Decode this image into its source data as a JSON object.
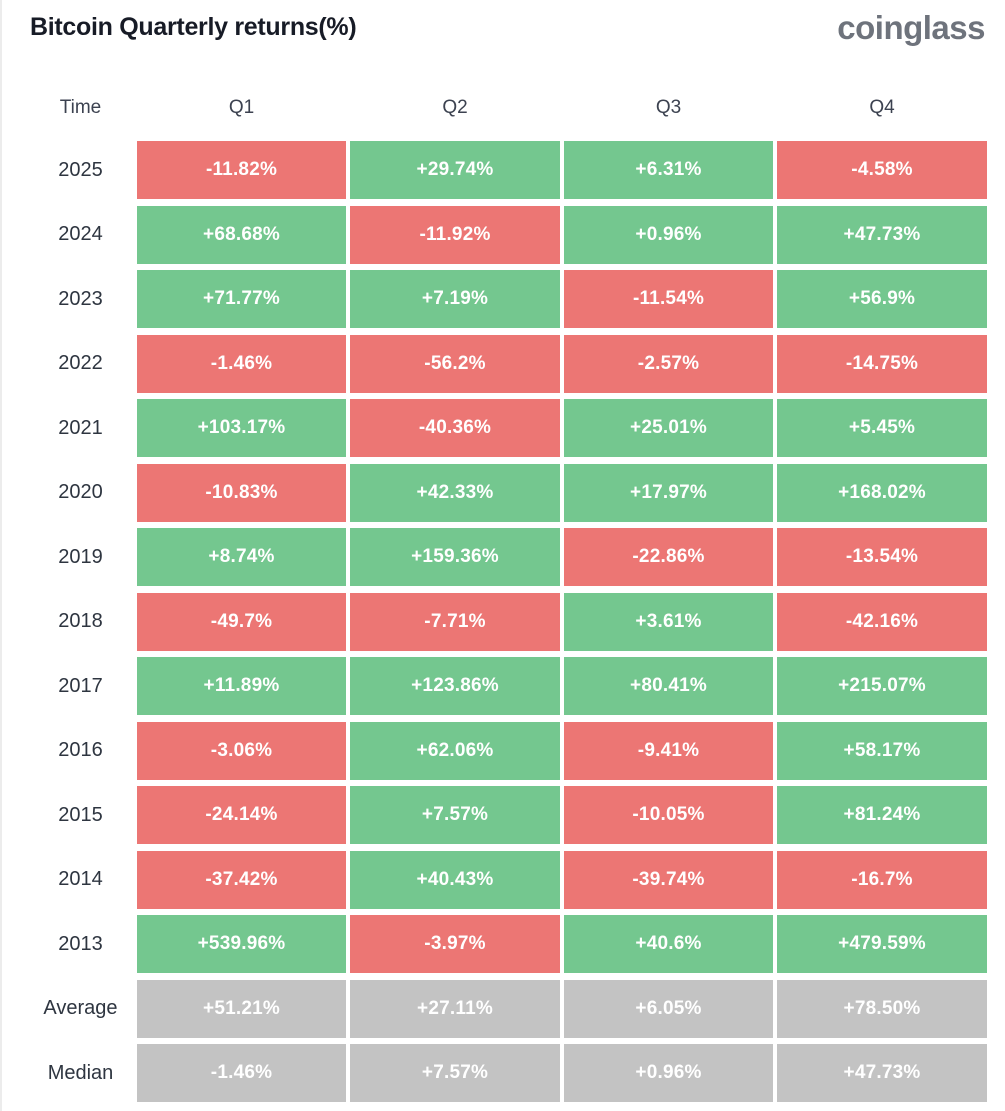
{
  "page": {
    "title": "Bitcoin Quarterly returns(%)",
    "brand": "coinglass"
  },
  "colors": {
    "positive": "#74c78f",
    "negative": "#ec7674",
    "neutral": "#c3c3c3",
    "cell_text": "#ffffff",
    "title_text": "#171b26",
    "brand_text": "#6e737c",
    "label_text": "#2e3540",
    "header_text": "#3c4250",
    "page_border": "#ececec"
  },
  "chart_data": {
    "type": "heatmap",
    "title": "Bitcoin Quarterly returns(%)",
    "legend_position": "none",
    "grid": false,
    "columns": [
      "Time",
      "Q1",
      "Q2",
      "Q3",
      "Q4"
    ],
    "unit": "%",
    "rows": [
      {
        "label": "2025",
        "summary": false,
        "values": [
          -11.82,
          29.74,
          6.31,
          -4.58
        ],
        "display": [
          "-11.82%",
          "+29.74%",
          "+6.31%",
          "-4.58%"
        ]
      },
      {
        "label": "2024",
        "summary": false,
        "values": [
          68.68,
          -11.92,
          0.96,
          47.73
        ],
        "display": [
          "+68.68%",
          "-11.92%",
          "+0.96%",
          "+47.73%"
        ]
      },
      {
        "label": "2023",
        "summary": false,
        "values": [
          71.77,
          7.19,
          -11.54,
          56.9
        ],
        "display": [
          "+71.77%",
          "+7.19%",
          "-11.54%",
          "+56.9%"
        ]
      },
      {
        "label": "2022",
        "summary": false,
        "values": [
          -1.46,
          -56.2,
          -2.57,
          -14.75
        ],
        "display": [
          "-1.46%",
          "-56.2%",
          "-2.57%",
          "-14.75%"
        ]
      },
      {
        "label": "2021",
        "summary": false,
        "values": [
          103.17,
          -40.36,
          25.01,
          5.45
        ],
        "display": [
          "+103.17%",
          "-40.36%",
          "+25.01%",
          "+5.45%"
        ]
      },
      {
        "label": "2020",
        "summary": false,
        "values": [
          -10.83,
          42.33,
          17.97,
          168.02
        ],
        "display": [
          "-10.83%",
          "+42.33%",
          "+17.97%",
          "+168.02%"
        ]
      },
      {
        "label": "2019",
        "summary": false,
        "values": [
          8.74,
          159.36,
          -22.86,
          -13.54
        ],
        "display": [
          "+8.74%",
          "+159.36%",
          "-22.86%",
          "-13.54%"
        ]
      },
      {
        "label": "2018",
        "summary": false,
        "values": [
          -49.7,
          -7.71,
          3.61,
          -42.16
        ],
        "display": [
          "-49.7%",
          "-7.71%",
          "+3.61%",
          "-42.16%"
        ]
      },
      {
        "label": "2017",
        "summary": false,
        "values": [
          11.89,
          123.86,
          80.41,
          215.07
        ],
        "display": [
          "+11.89%",
          "+123.86%",
          "+80.41%",
          "+215.07%"
        ]
      },
      {
        "label": "2016",
        "summary": false,
        "values": [
          -3.06,
          62.06,
          -9.41,
          58.17
        ],
        "display": [
          "-3.06%",
          "+62.06%",
          "-9.41%",
          "+58.17%"
        ]
      },
      {
        "label": "2015",
        "summary": false,
        "values": [
          -24.14,
          7.57,
          -10.05,
          81.24
        ],
        "display": [
          "-24.14%",
          "+7.57%",
          "-10.05%",
          "+81.24%"
        ]
      },
      {
        "label": "2014",
        "summary": false,
        "values": [
          -37.42,
          40.43,
          -39.74,
          -16.7
        ],
        "display": [
          "-37.42%",
          "+40.43%",
          "-39.74%",
          "-16.7%"
        ]
      },
      {
        "label": "2013",
        "summary": false,
        "values": [
          539.96,
          -3.97,
          40.6,
          479.59
        ],
        "display": [
          "+539.96%",
          "-3.97%",
          "+40.6%",
          "+479.59%"
        ]
      },
      {
        "label": "Average",
        "summary": true,
        "values": [
          51.21,
          27.11,
          6.05,
          78.5
        ],
        "display": [
          "+51.21%",
          "+27.11%",
          "+6.05%",
          "+78.50%"
        ]
      },
      {
        "label": "Median",
        "summary": true,
        "values": [
          -1.46,
          7.57,
          0.96,
          47.73
        ],
        "display": [
          "-1.46%",
          "+7.57%",
          "+0.96%",
          "+47.73%"
        ]
      }
    ]
  }
}
